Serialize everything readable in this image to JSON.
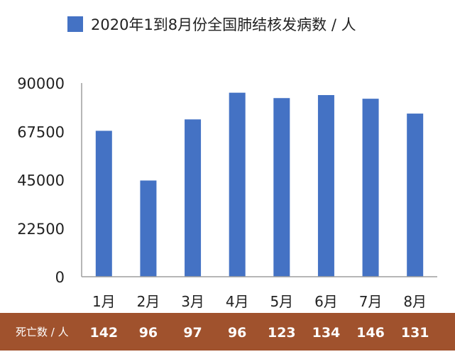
{
  "colors": {
    "bar": "#4472c4",
    "band": "#a0522d",
    "axis": "#9e9e9e",
    "text": "#222222"
  },
  "chart_data": {
    "type": "bar",
    "legend_position": "top",
    "grid": false,
    "series": [
      {
        "name": "2020年1到8月份全国肺结核发病数 / 人",
        "values": [
          67800,
          44700,
          73100,
          85500,
          83000,
          84400,
          82700,
          75800
        ]
      }
    ],
    "categories": [
      "1月",
      "2月",
      "3月",
      "4月",
      "5月",
      "6月",
      "7月",
      "8月"
    ],
    "ylim": [
      0,
      90000
    ],
    "yticks": [
      "0",
      "22500",
      "45000",
      "67500",
      "90000"
    ],
    "deaths": {
      "label": "死亡数 / 人",
      "values": [
        "142",
        "96",
        "97",
        "96",
        "123",
        "134",
        "146",
        "131"
      ]
    }
  }
}
